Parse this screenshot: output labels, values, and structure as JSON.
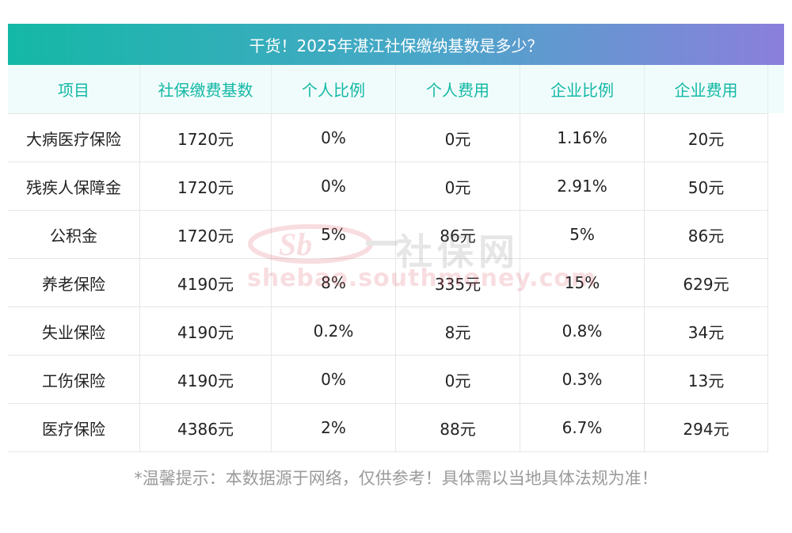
{
  "title": "干货！2025年湛江社保缴纳基数是多少？",
  "table": {
    "headers": [
      "项目",
      "社保缴费基数",
      "个人比例",
      "个人费用",
      "企业比例",
      "企业费用"
    ],
    "rows": [
      [
        "大病医疗保险",
        "1720元",
        "0%",
        "0元",
        "1.16%",
        "20元"
      ],
      [
        "残疾人保障金",
        "1720元",
        "0%",
        "0元",
        "2.91%",
        "50元"
      ],
      [
        "公积金",
        "1720元",
        "5%",
        "86元",
        "5%",
        "86元"
      ],
      [
        "养老保险",
        "4190元",
        "8%",
        "335元",
        "15%",
        "629元"
      ],
      [
        "失业保险",
        "4190元",
        "0.2%",
        "8元",
        "0.8%",
        "34元"
      ],
      [
        "工伤保险",
        "4190元",
        "0%",
        "0元",
        "0.3%",
        "13元"
      ],
      [
        "医疗保险",
        "4386元",
        "2%",
        "88元",
        "6.7%",
        "294元"
      ]
    ]
  },
  "footer_note": "*温馨提示：本数据源于网络，仅供参考！具体需以当地具体法规为准！",
  "watermark": {
    "brand_cn": "社保网",
    "url": "shebao.southmoney.com"
  },
  "colors": {
    "accent": "#14b8a6",
    "gradient_end": "#8b7fdc",
    "header_bg": "#f0fcfb",
    "note_text": "#9a9a9a"
  }
}
